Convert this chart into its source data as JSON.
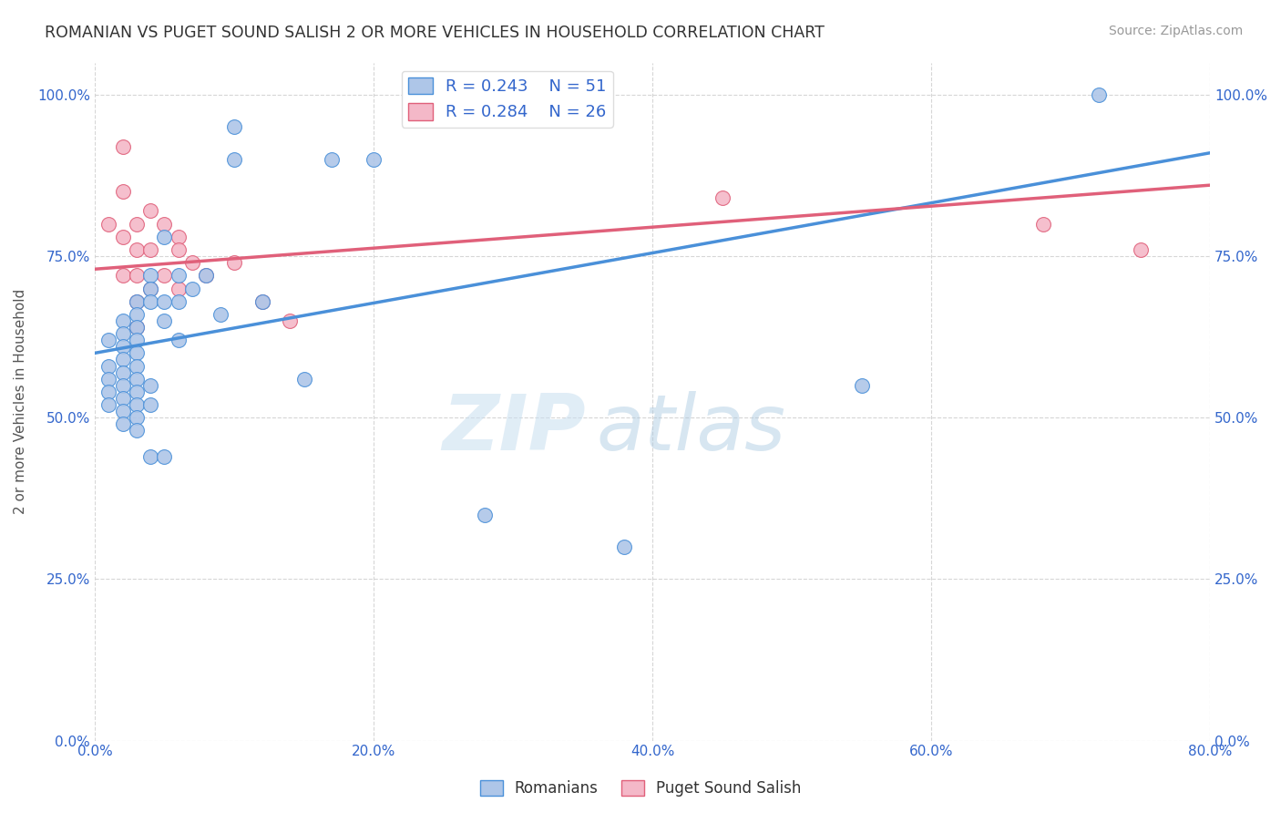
{
  "title": "ROMANIAN VS PUGET SOUND SALISH 2 OR MORE VEHICLES IN HOUSEHOLD CORRELATION CHART",
  "source": "Source: ZipAtlas.com",
  "xlabel_ticks": [
    "0.0%",
    "20.0%",
    "40.0%",
    "60.0%",
    "80.0%"
  ],
  "ylabel_ticks": [
    "0.0%",
    "25.0%",
    "50.0%",
    "75.0%",
    "100.0%"
  ],
  "xlim": [
    0.0,
    0.8
  ],
  "ylim": [
    0.0,
    1.05
  ],
  "ylabel": "2 or more Vehicles in Household",
  "legend_blue_label": "Romanians",
  "legend_pink_label": "Puget Sound Salish",
  "r_blue": "0.243",
  "n_blue": "51",
  "r_pink": "0.284",
  "n_pink": "26",
  "blue_color": "#aec6e8",
  "pink_color": "#f4b8c8",
  "line_blue": "#4a90d9",
  "line_pink": "#e0607a",
  "watermark_zip": "ZIP",
  "watermark_atlas": "atlas",
  "blue_x": [
    0.01,
    0.01,
    0.01,
    0.01,
    0.01,
    0.02,
    0.02,
    0.02,
    0.02,
    0.02,
    0.02,
    0.02,
    0.02,
    0.02,
    0.03,
    0.03,
    0.03,
    0.03,
    0.03,
    0.03,
    0.03,
    0.03,
    0.03,
    0.03,
    0.03,
    0.04,
    0.04,
    0.04,
    0.04,
    0.04,
    0.04,
    0.05,
    0.05,
    0.05,
    0.05,
    0.06,
    0.06,
    0.06,
    0.07,
    0.08,
    0.09,
    0.1,
    0.1,
    0.12,
    0.15,
    0.17,
    0.2,
    0.28,
    0.38,
    0.55,
    0.72
  ],
  "blue_y": [
    0.62,
    0.58,
    0.56,
    0.54,
    0.52,
    0.65,
    0.63,
    0.61,
    0.59,
    0.57,
    0.55,
    0.53,
    0.51,
    0.49,
    0.68,
    0.66,
    0.64,
    0.62,
    0.6,
    0.58,
    0.56,
    0.54,
    0.52,
    0.5,
    0.48,
    0.72,
    0.7,
    0.68,
    0.55,
    0.52,
    0.44,
    0.78,
    0.68,
    0.65,
    0.44,
    0.72,
    0.68,
    0.62,
    0.7,
    0.72,
    0.66,
    0.9,
    0.95,
    0.68,
    0.56,
    0.9,
    0.9,
    0.35,
    0.3,
    0.55,
    1.0
  ],
  "pink_x": [
    0.01,
    0.02,
    0.02,
    0.02,
    0.02,
    0.03,
    0.03,
    0.03,
    0.03,
    0.03,
    0.04,
    0.04,
    0.04,
    0.05,
    0.05,
    0.06,
    0.06,
    0.06,
    0.07,
    0.08,
    0.1,
    0.12,
    0.14,
    0.45,
    0.68,
    0.75
  ],
  "pink_y": [
    0.8,
    0.92,
    0.85,
    0.78,
    0.72,
    0.8,
    0.76,
    0.72,
    0.68,
    0.64,
    0.82,
    0.76,
    0.7,
    0.8,
    0.72,
    0.78,
    0.76,
    0.7,
    0.74,
    0.72,
    0.74,
    0.68,
    0.65,
    0.84,
    0.8,
    0.76
  ]
}
